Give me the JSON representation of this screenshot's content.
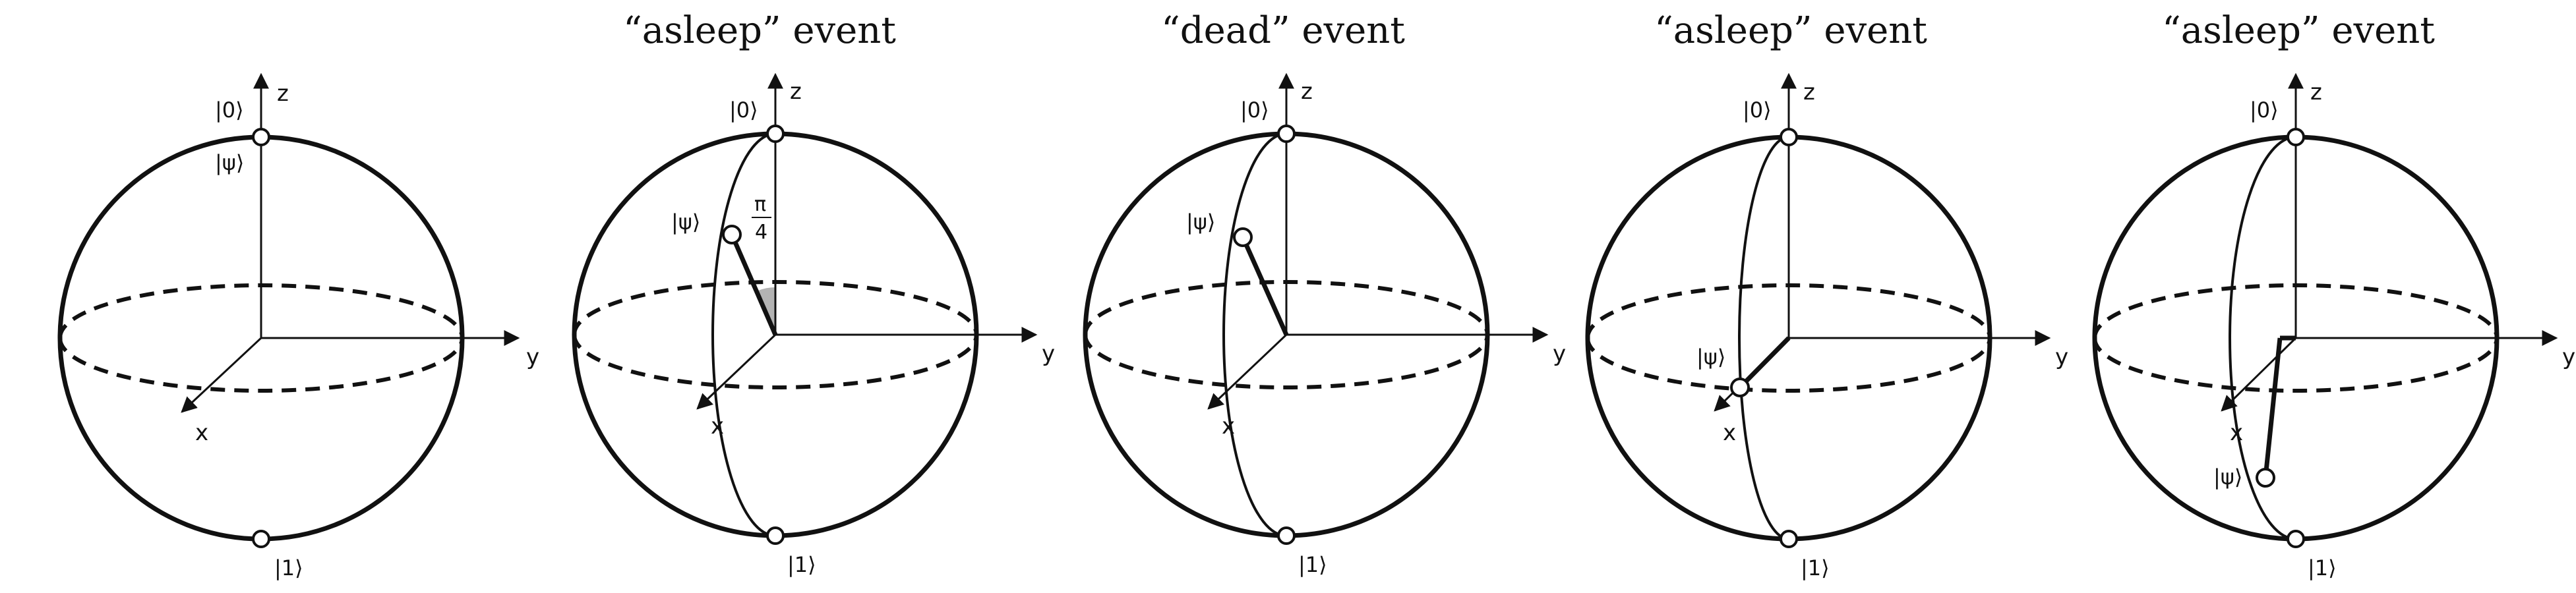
{
  "panels": [
    {
      "title": "",
      "labels": {
        "zero": "|0⟩",
        "one": "|1⟩",
        "psi": "|ψ⟩",
        "x": "x",
        "y": "y",
        "z": "z"
      }
    },
    {
      "title": "“asleep” event",
      "labels": {
        "zero": "|0⟩",
        "one": "|1⟩",
        "psi": "|ψ⟩",
        "x": "x",
        "y": "y",
        "z": "z",
        "angle_num": "π",
        "angle_den": "4"
      }
    },
    {
      "title": "“dead” event",
      "labels": {
        "zero": "|0⟩",
        "one": "|1⟩",
        "psi": "|ψ⟩",
        "x": "x",
        "y": "y",
        "z": "z"
      }
    },
    {
      "title": "“asleep” event",
      "labels": {
        "zero": "|0⟩",
        "one": "|1⟩",
        "psi": "|ψ⟩",
        "x": "x",
        "y": "y",
        "z": "z"
      }
    },
    {
      "title": "“asleep” event",
      "labels": {
        "zero": "|0⟩",
        "one": "|1⟩",
        "psi": "|ψ⟩",
        "x": "x",
        "y": "y",
        "z": "z"
      }
    }
  ]
}
